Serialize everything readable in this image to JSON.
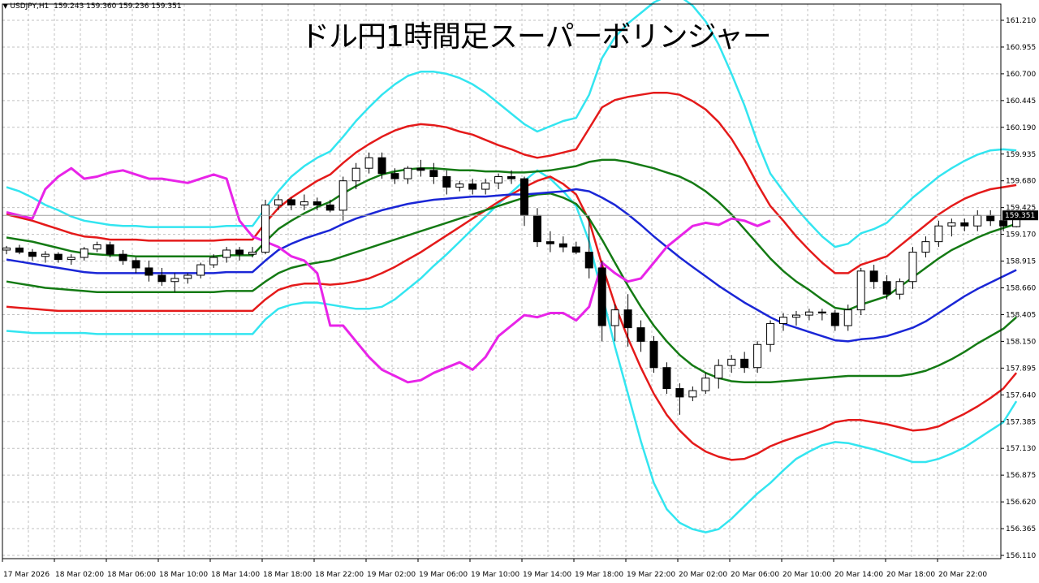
{
  "header": {
    "symbol": "USDJPY,H1",
    "ohlc": "159.243 159.360 159.236 159.351"
  },
  "chart_data": {
    "type": "candlestick",
    "title": "ドル円1時間足スーパーボリンジャー",
    "current_price": "159.351",
    "current_price_value": 159.351,
    "ylim": [
      156.06,
      161.3
    ],
    "y_ticks": [
      "161.210",
      "160.955",
      "160.700",
      "160.445",
      "160.190",
      "159.935",
      "159.680",
      "159.425",
      "159.170",
      "158.915",
      "158.660",
      "158.405",
      "158.150",
      "157.895",
      "157.640",
      "157.385",
      "157.130",
      "156.875",
      "156.620",
      "156.365",
      "156.110"
    ],
    "x_labels": [
      "17 Mar 2026",
      "18 Mar 02:00",
      "18 Mar 06:00",
      "18 Mar 10:00",
      "18 Mar 14:00",
      "18 Mar 18:00",
      "18 Mar 22:00",
      "19 Mar 02:00",
      "19 Mar 06:00",
      "19 Mar 10:00",
      "19 Mar 14:00",
      "19 Mar 18:00",
      "19 Mar 22:00",
      "20 Mar 02:00",
      "20 Mar 06:00",
      "20 Mar 10:00",
      "20 Mar 14:00",
      "20 Mar 18:00",
      "20 Mar 22:00"
    ],
    "grid": true,
    "colors": {
      "background": "#ffffff",
      "grid": "#c0c0c0",
      "upper3": "#33e5f0",
      "upper2": "#e41a1a",
      "upper1": "#147a14",
      "middle": "#1a26d6",
      "lower1": "#147a14",
      "lower2": "#e41a1a",
      "lower3": "#33e5f0",
      "chikou": "#e824e8",
      "bull_body": "#ffffff",
      "bear_body": "#000000",
      "price_tag": "#000000"
    },
    "candles": [
      [
        159.02,
        159.06,
        158.98,
        159.04
      ],
      [
        159.04,
        159.07,
        158.98,
        159.0
      ],
      [
        159.0,
        159.03,
        158.92,
        158.96
      ],
      [
        158.96,
        159.01,
        158.9,
        158.98
      ],
      [
        158.98,
        159.0,
        158.9,
        158.93
      ],
      [
        158.93,
        158.98,
        158.88,
        158.95
      ],
      [
        158.95,
        159.05,
        158.92,
        159.03
      ],
      [
        159.03,
        159.1,
        159.0,
        159.07
      ],
      [
        159.07,
        159.1,
        158.95,
        158.98
      ],
      [
        158.98,
        159.02,
        158.88,
        158.92
      ],
      [
        158.92,
        158.95,
        158.8,
        158.85
      ],
      [
        158.85,
        158.92,
        158.72,
        158.78
      ],
      [
        158.78,
        158.85,
        158.68,
        158.72
      ],
      [
        158.72,
        158.8,
        158.62,
        158.75
      ],
      [
        158.75,
        158.8,
        158.7,
        158.78
      ],
      [
        158.78,
        158.9,
        158.75,
        158.88
      ],
      [
        158.88,
        158.98,
        158.85,
        158.95
      ],
      [
        158.95,
        159.05,
        158.9,
        159.02
      ],
      [
        159.02,
        159.05,
        158.92,
        158.98
      ],
      [
        158.98,
        159.05,
        158.95,
        159.0
      ],
      [
        159.0,
        159.5,
        158.98,
        159.45
      ],
      [
        159.45,
        159.55,
        159.4,
        159.5
      ],
      [
        159.5,
        159.52,
        159.4,
        159.45
      ],
      [
        159.45,
        159.55,
        159.4,
        159.48
      ],
      [
        159.48,
        159.52,
        159.4,
        159.45
      ],
      [
        159.45,
        159.5,
        159.38,
        159.4
      ],
      [
        159.4,
        159.72,
        159.3,
        159.68
      ],
      [
        159.68,
        159.85,
        159.6,
        159.8
      ],
      [
        159.8,
        159.95,
        159.75,
        159.9
      ],
      [
        159.9,
        159.95,
        159.7,
        159.75
      ],
      [
        159.75,
        159.8,
        159.65,
        159.7
      ],
      [
        159.7,
        159.82,
        159.65,
        159.8
      ],
      [
        159.8,
        159.88,
        159.72,
        159.78
      ],
      [
        159.78,
        159.85,
        159.65,
        159.72
      ],
      [
        159.72,
        159.78,
        159.55,
        159.62
      ],
      [
        159.62,
        159.68,
        159.58,
        159.65
      ],
      [
        159.65,
        159.7,
        159.55,
        159.6
      ],
      [
        159.6,
        159.7,
        159.55,
        159.66
      ],
      [
        159.66,
        159.75,
        159.6,
        159.72
      ],
      [
        159.72,
        159.78,
        159.65,
        159.7
      ],
      [
        159.7,
        159.72,
        159.25,
        159.35
      ],
      [
        159.35,
        159.42,
        159.05,
        159.1
      ],
      [
        159.1,
        159.2,
        159.0,
        159.08
      ],
      [
        159.08,
        159.15,
        159.0,
        159.05
      ],
      [
        159.05,
        159.1,
        158.98,
        159.0
      ],
      [
        159.0,
        159.35,
        158.75,
        158.85
      ],
      [
        158.85,
        158.92,
        158.15,
        158.3
      ],
      [
        158.3,
        158.5,
        158.15,
        158.45
      ],
      [
        158.45,
        158.6,
        158.1,
        158.28
      ],
      [
        158.28,
        158.35,
        158.05,
        158.15
      ],
      [
        158.15,
        158.2,
        157.85,
        157.9
      ],
      [
        157.9,
        157.95,
        157.65,
        157.7
      ],
      [
        157.7,
        157.75,
        157.45,
        157.62
      ],
      [
        157.62,
        157.72,
        157.58,
        157.68
      ],
      [
        157.68,
        157.85,
        157.65,
        157.8
      ],
      [
        157.8,
        157.98,
        157.7,
        157.92
      ],
      [
        157.92,
        158.02,
        157.85,
        157.98
      ],
      [
        157.98,
        158.05,
        157.85,
        157.9
      ],
      [
        157.9,
        158.15,
        157.85,
        158.12
      ],
      [
        158.12,
        158.35,
        158.05,
        158.32
      ],
      [
        158.32,
        158.42,
        158.25,
        158.38
      ],
      [
        158.38,
        158.44,
        158.3,
        158.4
      ],
      [
        158.4,
        158.46,
        158.35,
        158.43
      ],
      [
        158.43,
        158.46,
        158.35,
        158.42
      ],
      [
        158.42,
        158.45,
        158.25,
        158.3
      ],
      [
        158.3,
        158.5,
        158.25,
        158.45
      ],
      [
        158.45,
        158.85,
        158.4,
        158.82
      ],
      [
        158.82,
        158.88,
        158.65,
        158.72
      ],
      [
        158.72,
        158.78,
        158.55,
        158.6
      ],
      [
        158.6,
        158.75,
        158.55,
        158.72
      ],
      [
        158.72,
        159.05,
        158.65,
        159.0
      ],
      [
        159.0,
        159.15,
        158.95,
        159.1
      ],
      [
        159.1,
        159.3,
        159.05,
        159.25
      ],
      [
        159.25,
        159.32,
        159.15,
        159.28
      ],
      [
        159.28,
        159.32,
        159.2,
        159.25
      ],
      [
        159.25,
        159.4,
        159.2,
        159.35
      ],
      [
        159.35,
        159.4,
        159.25,
        159.3
      ],
      [
        159.3,
        159.36,
        159.2,
        159.25
      ],
      [
        159.243,
        159.36,
        159.236,
        159.351
      ]
    ],
    "bands": {
      "upper3": [
        159.62,
        159.58,
        159.52,
        159.45,
        159.4,
        159.34,
        159.3,
        159.28,
        159.26,
        159.25,
        159.25,
        159.24,
        159.24,
        159.24,
        159.24,
        159.24,
        159.24,
        159.25,
        159.25,
        159.25,
        159.42,
        159.58,
        159.72,
        159.82,
        159.9,
        159.96,
        160.1,
        160.25,
        160.38,
        160.5,
        160.6,
        160.68,
        160.72,
        160.72,
        160.7,
        160.66,
        160.6,
        160.52,
        160.42,
        160.32,
        160.22,
        160.15,
        160.2,
        160.25,
        160.28,
        160.5,
        160.85,
        161.05,
        161.18,
        161.28,
        161.38,
        161.44,
        161.44,
        161.35,
        161.2,
        160.98,
        160.7,
        160.4,
        160.05,
        159.75,
        159.58,
        159.42,
        159.28,
        159.15,
        159.05,
        159.08,
        159.18,
        159.22,
        159.28,
        159.4,
        159.52,
        159.62,
        159.72,
        159.8,
        159.87,
        159.93,
        159.97,
        159.98,
        159.97
      ],
      "upper2": [
        159.36,
        159.33,
        159.3,
        159.26,
        159.22,
        159.18,
        159.15,
        159.14,
        159.12,
        159.12,
        159.12,
        159.11,
        159.11,
        159.11,
        159.11,
        159.11,
        159.11,
        159.12,
        159.12,
        159.12,
        159.28,
        159.42,
        159.52,
        159.6,
        159.68,
        159.74,
        159.85,
        159.95,
        160.03,
        160.1,
        160.16,
        160.2,
        160.22,
        160.21,
        160.19,
        160.15,
        160.12,
        160.07,
        160.02,
        159.98,
        159.93,
        159.9,
        159.92,
        159.95,
        159.98,
        160.18,
        160.38,
        160.45,
        160.48,
        160.5,
        160.52,
        160.52,
        160.5,
        160.44,
        160.36,
        160.24,
        160.08,
        159.88,
        159.65,
        159.44,
        159.3,
        159.15,
        159.02,
        158.9,
        158.8,
        158.8,
        158.88,
        158.92,
        158.96,
        159.06,
        159.16,
        159.26,
        159.36,
        159.44,
        159.51,
        159.56,
        159.6,
        159.62,
        159.64
      ],
      "upper1": [
        159.14,
        159.12,
        159.1,
        159.07,
        159.04,
        159.01,
        158.99,
        158.98,
        158.97,
        158.97,
        158.96,
        158.96,
        158.96,
        158.96,
        158.96,
        158.96,
        158.96,
        158.97,
        158.97,
        158.97,
        159.1,
        159.22,
        159.3,
        159.37,
        159.43,
        159.48,
        159.56,
        159.63,
        159.69,
        159.74,
        159.77,
        159.79,
        159.8,
        159.8,
        159.79,
        159.78,
        159.78,
        159.77,
        159.77,
        159.76,
        159.76,
        159.77,
        159.78,
        159.8,
        159.82,
        159.86,
        159.88,
        159.88,
        159.86,
        159.83,
        159.8,
        159.76,
        159.72,
        159.66,
        159.58,
        159.48,
        159.36,
        159.22,
        159.08,
        158.94,
        158.82,
        158.72,
        158.64,
        158.55,
        158.47,
        158.45,
        158.5,
        158.54,
        158.58,
        158.67,
        158.76,
        158.85,
        158.94,
        159.02,
        159.08,
        159.14,
        159.19,
        159.23,
        159.27
      ],
      "middle": [
        158.93,
        158.91,
        158.89,
        158.87,
        158.85,
        158.83,
        158.81,
        158.8,
        158.8,
        158.8,
        158.8,
        158.8,
        158.8,
        158.8,
        158.8,
        158.8,
        158.8,
        158.81,
        158.81,
        158.81,
        158.92,
        159.02,
        159.08,
        159.13,
        159.17,
        159.21,
        159.27,
        159.32,
        159.36,
        159.4,
        159.43,
        159.46,
        159.48,
        159.5,
        159.51,
        159.52,
        159.53,
        159.53,
        159.54,
        159.55,
        159.55,
        159.56,
        159.57,
        159.58,
        159.6,
        159.58,
        159.52,
        159.45,
        159.36,
        159.26,
        159.15,
        159.05,
        158.95,
        158.86,
        158.77,
        158.68,
        158.6,
        158.52,
        158.45,
        158.38,
        158.32,
        158.28,
        158.24,
        158.2,
        158.16,
        158.15,
        158.17,
        158.18,
        158.2,
        158.24,
        158.28,
        158.34,
        158.42,
        158.5,
        158.58,
        158.65,
        158.71,
        158.77,
        158.83
      ],
      "lower1": [
        158.72,
        158.7,
        158.68,
        158.66,
        158.65,
        158.64,
        158.63,
        158.62,
        158.62,
        158.62,
        158.62,
        158.62,
        158.62,
        158.62,
        158.62,
        158.62,
        158.62,
        158.63,
        158.63,
        158.63,
        158.72,
        158.8,
        158.85,
        158.88,
        158.9,
        158.92,
        158.96,
        159.0,
        159.04,
        159.08,
        159.12,
        159.16,
        159.2,
        159.24,
        159.28,
        159.32,
        159.36,
        159.4,
        159.44,
        159.48,
        159.52,
        159.55,
        159.56,
        159.52,
        159.46,
        159.32,
        159.12,
        158.9,
        158.68,
        158.48,
        158.3,
        158.15,
        158.02,
        157.92,
        157.85,
        157.8,
        157.77,
        157.76,
        157.76,
        157.76,
        157.77,
        157.78,
        157.79,
        157.8,
        157.81,
        157.82,
        157.82,
        157.82,
        157.82,
        157.82,
        157.84,
        157.87,
        157.92,
        157.98,
        158.05,
        158.13,
        158.2,
        158.27,
        158.38
      ],
      "lower2": [
        158.48,
        158.47,
        158.46,
        158.45,
        158.44,
        158.44,
        158.44,
        158.44,
        158.44,
        158.44,
        158.44,
        158.44,
        158.44,
        158.44,
        158.44,
        158.44,
        158.44,
        158.44,
        158.44,
        158.44,
        158.55,
        158.64,
        158.68,
        158.7,
        158.7,
        158.69,
        158.7,
        158.72,
        158.75,
        158.8,
        158.86,
        158.93,
        159.0,
        159.08,
        159.16,
        159.24,
        159.32,
        159.4,
        159.48,
        159.55,
        159.62,
        159.68,
        159.72,
        159.65,
        159.55,
        159.3,
        158.88,
        158.5,
        158.18,
        157.9,
        157.65,
        157.45,
        157.3,
        157.18,
        157.1,
        157.05,
        157.02,
        157.03,
        157.08,
        157.15,
        157.2,
        157.24,
        157.28,
        157.32,
        157.38,
        157.4,
        157.4,
        157.38,
        157.36,
        157.33,
        157.3,
        157.31,
        157.34,
        157.4,
        157.46,
        157.53,
        157.61,
        157.7,
        157.85
      ],
      "lower3": [
        158.25,
        158.24,
        158.23,
        158.23,
        158.23,
        158.23,
        158.23,
        158.22,
        158.22,
        158.22,
        158.22,
        158.22,
        158.22,
        158.22,
        158.22,
        158.22,
        158.22,
        158.22,
        158.22,
        158.22,
        158.36,
        158.46,
        158.5,
        158.52,
        158.52,
        158.5,
        158.48,
        158.46,
        158.46,
        158.48,
        158.55,
        158.65,
        158.75,
        158.87,
        158.98,
        159.1,
        159.22,
        159.34,
        159.46,
        159.57,
        159.68,
        159.78,
        159.7,
        159.58,
        159.44,
        159.1,
        158.6,
        158.1,
        157.65,
        157.2,
        156.8,
        156.55,
        156.42,
        156.36,
        156.33,
        156.36,
        156.46,
        156.58,
        156.7,
        156.8,
        156.92,
        157.03,
        157.1,
        157.16,
        157.19,
        157.18,
        157.15,
        157.12,
        157.08,
        157.04,
        157.0,
        157.0,
        157.03,
        157.08,
        157.14,
        157.22,
        157.3,
        157.38,
        157.58
      ]
    },
    "chikou": [
      159.38,
      159.35,
      159.32,
      159.6,
      159.72,
      159.8,
      159.7,
      159.72,
      159.76,
      159.78,
      159.74,
      159.7,
      159.7,
      159.68,
      159.66,
      159.7,
      159.74,
      159.7,
      159.3,
      159.15,
      159.1,
      159.05,
      158.96,
      158.92,
      158.8,
      158.3,
      158.3,
      158.15,
      158.0,
      157.88,
      157.82,
      157.76,
      157.78,
      157.85,
      157.9,
      157.95,
      157.88,
      158.0,
      158.2,
      158.3,
      158.4,
      158.38,
      158.42,
      158.42,
      158.35,
      158.48,
      158.9,
      158.8,
      158.72,
      158.75,
      158.9,
      159.05,
      159.15,
      159.25,
      159.28,
      159.26,
      159.32,
      159.3,
      159.25,
      159.3
    ]
  }
}
